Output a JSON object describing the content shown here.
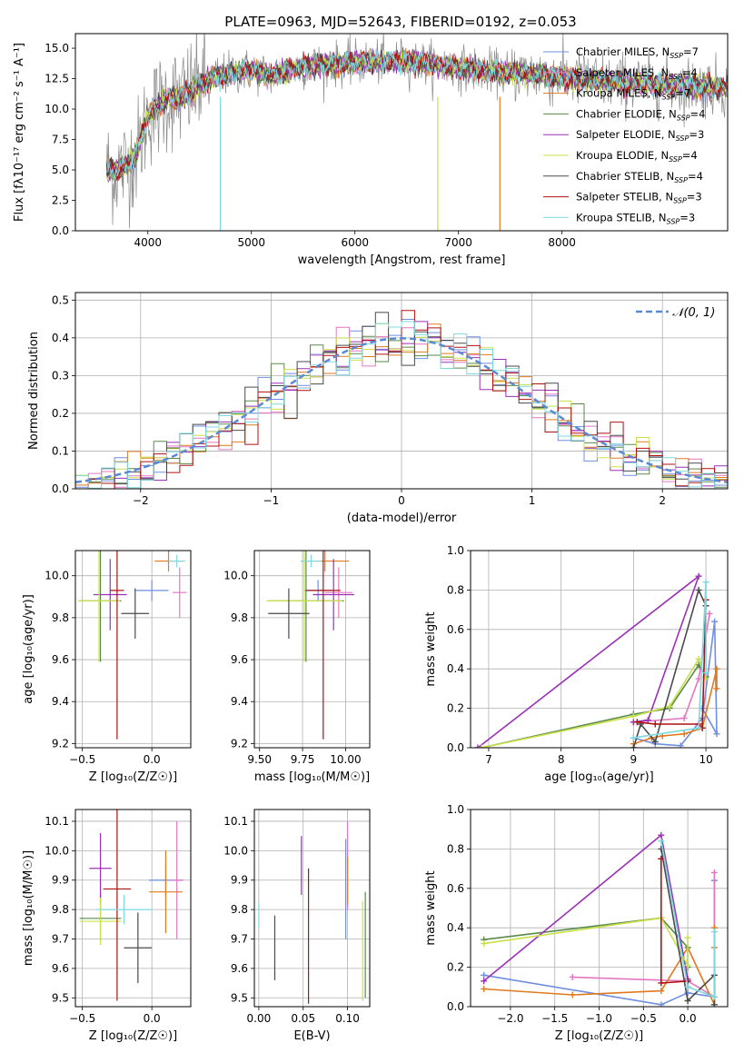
{
  "figure": {
    "title": "PLATE=0963, MJD=52643, FIBERID=0192, z=0.053"
  },
  "colors": {
    "chabrier_miles": "#6e8fe0",
    "salpeter_miles": "#e377c2",
    "kroupa_miles": "#e07a1f",
    "chabrier_elodie": "#5a8a4a",
    "salpeter_elodie": "#9b30b8",
    "kroupa_elodie": "#c8e04a",
    "chabrier_stelib": "#4a4a4a",
    "salpeter_stelib": "#b01010",
    "kroupa_stelib": "#7dd8e0",
    "data_gray": "#8a8a8a",
    "gaussian": "#5a8ad6"
  },
  "chart_data": [
    {
      "id": "spectrum",
      "type": "line",
      "xlabel": "wavelength [Angstrom, rest frame]",
      "ylabel": "Flux [f$_\\lambda$10$^{-17}$ erg cm$^{-2}$ s$^{-1}$ A$^{-1}$]",
      "ylabel_display": "Flux [fλ10⁻¹⁷ erg cm⁻² s⁻¹ A⁻¹]",
      "xlim": [
        3300,
        9600
      ],
      "ylim": [
        0,
        16.2
      ],
      "xticks": [
        4000,
        5000,
        6000,
        7000,
        8000
      ],
      "yticks": [
        0.0,
        2.5,
        5.0,
        7.5,
        10.0,
        12.5,
        15.0
      ],
      "ytick_labels": [
        "0.0",
        "2.5",
        "5.0",
        "7.5",
        "10.0",
        "12.5",
        "15.0"
      ],
      "legend_position": "top-right",
      "legend": [
        {
          "label": "Chabrier MILES, N",
          "sub": "SSP",
          "suffix": "=7",
          "color_key": "chabrier_miles"
        },
        {
          "label": "Salpeter MILES, N",
          "sub": "SSP",
          "suffix": "=4",
          "color_key": "salpeter_miles"
        },
        {
          "label": "Kroupa MILES, N",
          "sub": "SSP",
          "suffix": "=7",
          "color_key": "kroupa_miles"
        },
        {
          "label": "Chabrier ELODIE, N",
          "sub": "SSP",
          "suffix": "=4",
          "color_key": "chabrier_elodie"
        },
        {
          "label": "Salpeter ELODIE, N",
          "sub": "SSP",
          "suffix": "=3",
          "color_key": "salpeter_elodie"
        },
        {
          "label": "Kroupa ELODIE, N",
          "sub": "SSP",
          "suffix": "=4",
          "color_key": "kroupa_elodie"
        },
        {
          "label": "Chabrier STELIB, N",
          "sub": "SSP",
          "suffix": "=4",
          "color_key": "chabrier_stelib"
        },
        {
          "label": "Salpeter STELIB, N",
          "sub": "SSP",
          "suffix": "=3",
          "color_key": "salpeter_stelib"
        },
        {
          "label": "Kroupa STELIB, N",
          "sub": "SSP",
          "suffix": "=3",
          "color_key": "kroupa_stelib"
        }
      ],
      "continuum": {
        "x": [
          3600,
          3700,
          3800,
          3900,
          4000,
          4100,
          4200,
          4300,
          4500,
          4700,
          5000,
          5200,
          5500,
          6000,
          6500,
          7000,
          7400,
          7600,
          8000,
          8500,
          9000,
          9500
        ],
        "y": [
          5.0,
          5.0,
          5.3,
          6.5,
          9.5,
          10.2,
          11.0,
          10.8,
          12.0,
          12.8,
          13.2,
          12.8,
          13.5,
          13.8,
          14.0,
          13.4,
          13.0,
          13.0,
          12.6,
          12.2,
          12.0,
          11.8
        ]
      },
      "spikes": [
        {
          "x": 4700,
          "y": 0.0
        },
        {
          "x": 6800,
          "y": 0.0
        },
        {
          "x": 7400,
          "y": 0.0
        }
      ]
    },
    {
      "id": "residual_histogram",
      "type": "histogram",
      "xlabel": "(data-model)/error",
      "ylabel": "Normed distribution",
      "xlim": [
        -2.5,
        2.5
      ],
      "ylim": [
        0,
        0.52
      ],
      "xticks": [
        -2,
        -1,
        0,
        1,
        2
      ],
      "xtick_labels": [
        "−2",
        "−1",
        "0",
        "1",
        "2"
      ],
      "yticks": [
        0.0,
        0.1,
        0.2,
        0.3,
        0.4,
        0.5
      ],
      "ytick_labels": [
        "0.0",
        "0.1",
        "0.2",
        "0.3",
        "0.4",
        "0.5"
      ],
      "bin_width": 0.1,
      "legend_position": "top-right",
      "gaussian_label": "𝒩(0, 1)",
      "grid": true
    },
    {
      "id": "age_vs_Z",
      "type": "errorbar",
      "xlabel": "Z [log₁₀(Z/Z☉)]",
      "ylabel": "age  [log₁₀(age/yr)]",
      "xlim": [
        -0.55,
        0.28
      ],
      "ylim": [
        9.18,
        10.12
      ],
      "xticks": [
        -0.5,
        0.0
      ],
      "xtick_labels": [
        "−0.5",
        "0.0"
      ],
      "yticks": [
        9.2,
        9.4,
        9.6,
        9.8,
        10.0
      ],
      "ytick_labels": [
        "9.2",
        "9.4",
        "9.6",
        "9.8",
        "10.0"
      ],
      "points": [
        {
          "color_key": "chabrier_miles",
          "x": 0.0,
          "y": 9.93,
          "xerr": 0.12,
          "yerr": 0.05
        },
        {
          "color_key": "salpeter_miles",
          "x": 0.2,
          "y": 9.92,
          "xerr": 0.05,
          "yerr": 0.12
        },
        {
          "color_key": "kroupa_miles",
          "x": 0.12,
          "y": 10.07,
          "xerr": 0.1,
          "yerr": 0.05
        },
        {
          "color_key": "chabrier_elodie",
          "x": -0.37,
          "y": 9.88,
          "xerr": 0.15,
          "yerr": 0.29
        },
        {
          "color_key": "salpeter_elodie",
          "x": -0.3,
          "y": 9.91,
          "xerr": 0.12,
          "yerr": 0.17
        },
        {
          "color_key": "kroupa_elodie",
          "x": -0.38,
          "y": 9.88,
          "xerr": 0.15,
          "yerr": 0.29
        },
        {
          "color_key": "chabrier_stelib",
          "x": -0.12,
          "y": 9.82,
          "xerr": 0.1,
          "yerr": 0.12
        },
        {
          "color_key": "salpeter_stelib",
          "x": -0.25,
          "y": 9.93,
          "xerr": 0.05,
          "yerr": 0.71
        },
        {
          "color_key": "kroupa_stelib",
          "x": 0.18,
          "y": 10.07,
          "xerr": 0.06,
          "yerr": 0.03
        }
      ]
    },
    {
      "id": "age_vs_mass",
      "type": "errorbar",
      "xlabel": "mass [log₁₀(M/M☉)]",
      "ylabel": "",
      "xlim": [
        9.47,
        10.14
      ],
      "ylim": [
        9.18,
        10.12
      ],
      "xticks": [
        9.5,
        9.75,
        10.0
      ],
      "xtick_labels": [
        "9.50",
        "9.75",
        "10.00"
      ],
      "yticks": [
        9.2,
        9.4,
        9.6,
        9.8,
        10.0
      ],
      "ytick_labels": [
        "9.2",
        "9.4",
        "9.6",
        "9.8",
        "10.0"
      ],
      "points": [
        {
          "color_key": "chabrier_miles",
          "x": 9.84,
          "y": 9.93,
          "xerr": 0.08,
          "yerr": 0.05
        },
        {
          "color_key": "salpeter_miles",
          "x": 9.96,
          "y": 9.92,
          "xerr": 0.08,
          "yerr": 0.12
        },
        {
          "color_key": "kroupa_miles",
          "x": 9.88,
          "y": 10.07,
          "xerr": 0.14,
          "yerr": 0.05
        },
        {
          "color_key": "chabrier_elodie",
          "x": 9.77,
          "y": 9.88,
          "xerr": 0.22,
          "yerr": 0.29
        },
        {
          "color_key": "salpeter_elodie",
          "x": 9.93,
          "y": 9.91,
          "xerr": 0.12,
          "yerr": 0.17
        },
        {
          "color_key": "kroupa_elodie",
          "x": 9.76,
          "y": 9.88,
          "xerr": 0.22,
          "yerr": 0.29
        },
        {
          "color_key": "chabrier_stelib",
          "x": 9.67,
          "y": 9.82,
          "xerr": 0.12,
          "yerr": 0.12
        },
        {
          "color_key": "salpeter_stelib",
          "x": 9.87,
          "y": 9.93,
          "xerr": 0.1,
          "yerr": 0.71
        },
        {
          "color_key": "kroupa_stelib",
          "x": 9.8,
          "y": 10.07,
          "xerr": 0.06,
          "yerr": 0.03
        }
      ]
    },
    {
      "id": "weight_vs_age",
      "type": "line",
      "xlabel": "age  [log₁₀(age/yr)]",
      "ylabel": "mass weight",
      "xlim": [
        6.75,
        10.3
      ],
      "ylim": [
        0,
        1.0
      ],
      "xticks": [
        7,
        8,
        9,
        10
      ],
      "xtick_labels": [
        "7",
        "8",
        "9",
        "10"
      ],
      "yticks": [
        0.0,
        0.2,
        0.4,
        0.6,
        0.8,
        1.0
      ],
      "ytick_labels": [
        "0.0",
        "0.2",
        "0.4",
        "0.6",
        "0.8",
        "1.0"
      ],
      "grid": true,
      "series": [
        {
          "color_key": "chabrier_miles",
          "x": [
            9.0,
            9.3,
            9.65,
            9.95,
            10.12,
            10.15,
            9.95
          ],
          "y": [
            0.05,
            0.02,
            0.01,
            0.15,
            0.64,
            0.07,
            0.2
          ]
        },
        {
          "color_key": "salpeter_miles",
          "x": [
            9.0,
            9.7,
            9.9,
            10.05
          ],
          "y": [
            0.13,
            0.15,
            0.35,
            0.68
          ]
        },
        {
          "color_key": "kroupa_miles",
          "x": [
            9.0,
            9.25,
            9.4,
            9.7,
            9.95,
            10.15,
            10.15
          ],
          "y": [
            0.02,
            0.05,
            0.06,
            0.07,
            0.1,
            0.4,
            0.3
          ]
        },
        {
          "color_key": "chabrier_elodie",
          "x": [
            6.9,
            9.0,
            9.5,
            9.9,
            10.0
          ],
          "y": [
            0.0,
            0.17,
            0.2,
            0.42,
            0.36
          ]
        },
        {
          "color_key": "salpeter_elodie",
          "x": [
            6.85,
            9.9,
            9.2,
            9.0
          ],
          "y": [
            0.0,
            0.87,
            0.14,
            0.13
          ]
        },
        {
          "color_key": "kroupa_elodie",
          "x": [
            6.9,
            9.0,
            9.5,
            9.9,
            10.0
          ],
          "y": [
            0.0,
            0.16,
            0.21,
            0.45,
            0.35
          ]
        },
        {
          "color_key": "chabrier_stelib",
          "x": [
            9.0,
            9.1,
            9.3,
            9.9,
            10.0
          ],
          "y": [
            0.0,
            0.12,
            0.03,
            0.8,
            0.72
          ]
        },
        {
          "color_key": "salpeter_stelib",
          "x": [
            9.05,
            9.3,
            9.9,
            9.95,
            10.0
          ],
          "y": [
            0.13,
            0.12,
            0.12,
            0.1,
            0.75
          ]
        },
        {
          "color_key": "kroupa_stelib",
          "x": [
            9.0,
            9.9,
            10.0,
            10.0
          ],
          "y": [
            0.05,
            0.1,
            0.84,
            0.38
          ]
        }
      ]
    },
    {
      "id": "mass_vs_Z",
      "type": "errorbar",
      "xlabel": "Z [log₁₀(Z/Z☉)]",
      "ylabel": "mass [log₁₀(M/M☉)]",
      "xlim": [
        -0.55,
        0.28
      ],
      "ylim": [
        9.47,
        10.14
      ],
      "xticks": [
        -0.5,
        0.0
      ],
      "xtick_labels": [
        "−0.5",
        "0.0"
      ],
      "yticks": [
        9.5,
        9.6,
        9.7,
        9.8,
        9.9,
        10.0,
        10.1
      ],
      "ytick_labels": [
        "9.5",
        "9.6",
        "9.7",
        "9.8",
        "9.9",
        "10.0",
        "10.1"
      ],
      "points": [
        {
          "color_key": "chabrier_miles",
          "x": 0.1,
          "y": 9.9,
          "xerr": 0.12,
          "yerr": 0.06
        },
        {
          "color_key": "salpeter_miles",
          "x": 0.18,
          "y": 9.9,
          "xerr": 0.05,
          "yerr": 0.2
        },
        {
          "color_key": "kroupa_miles",
          "x": 0.1,
          "y": 9.86,
          "xerr": 0.12,
          "yerr": 0.14
        },
        {
          "color_key": "chabrier_elodie",
          "x": -0.37,
          "y": 9.77,
          "xerr": 0.15,
          "yerr": 0.08
        },
        {
          "color_key": "salpeter_elodie",
          "x": -0.37,
          "y": 9.94,
          "xerr": 0.08,
          "yerr": 0.12
        },
        {
          "color_key": "kroupa_elodie",
          "x": -0.37,
          "y": 9.76,
          "xerr": 0.15,
          "yerr": 0.08
        },
        {
          "color_key": "chabrier_stelib",
          "x": -0.1,
          "y": 9.67,
          "xerr": 0.1,
          "yerr": 0.12
        },
        {
          "color_key": "salpeter_stelib",
          "x": -0.25,
          "y": 9.87,
          "xerr": 0.1,
          "yerr": 0.38
        },
        {
          "color_key": "kroupa_stelib",
          "x": -0.2,
          "y": 9.8,
          "xerr": 0.2,
          "yerr": 0.05
        }
      ]
    },
    {
      "id": "mass_vs_ebv",
      "type": "errorbar",
      "xlabel": "E(B-V)",
      "ylabel": "",
      "xlim": [
        -0.005,
        0.125
      ],
      "ylim": [
        9.47,
        10.14
      ],
      "xticks": [
        0.0,
        0.05,
        0.1
      ],
      "xtick_labels": [
        "0.00",
        "0.05",
        "0.10"
      ],
      "yticks": [
        9.5,
        9.6,
        9.7,
        9.8,
        9.9,
        10.0,
        10.1
      ],
      "ytick_labels": [
        "9.5",
        "9.6",
        "9.7",
        "9.8",
        "9.9",
        "10.0",
        "10.1"
      ],
      "points": [
        {
          "color_key": "chabrier_miles",
          "x": 0.098,
          "y": 9.87,
          "xerr": 0.0,
          "yerr": 0.17
        },
        {
          "color_key": "salpeter_miles",
          "x": 0.1,
          "y": 9.95,
          "xerr": 0.0,
          "yerr": 0.15
        },
        {
          "color_key": "kroupa_miles",
          "x": 0.1,
          "y": 9.9,
          "xerr": 0.0,
          "yerr": 0.08
        },
        {
          "color_key": "chabrier_elodie",
          "x": 0.12,
          "y": 9.68,
          "xerr": 0.0,
          "yerr": 0.18
        },
        {
          "color_key": "salpeter_elodie",
          "x": 0.048,
          "y": 9.95,
          "xerr": 0.0,
          "yerr": 0.1
        },
        {
          "color_key": "kroupa_elodie",
          "x": 0.117,
          "y": 9.66,
          "xerr": 0.0,
          "yerr": 0.17
        },
        {
          "color_key": "chabrier_stelib",
          "x": 0.018,
          "y": 9.67,
          "xerr": 0.0,
          "yerr": 0.11
        },
        {
          "color_key": "salpeter_stelib",
          "x": 0.056,
          "y": 9.71,
          "xerr": 0.0,
          "yerr": 0.23
        },
        {
          "color_key": "kroupa_stelib",
          "x": 0.0,
          "y": 9.78,
          "xerr": 0.0,
          "yerr": 0.04
        }
      ]
    },
    {
      "id": "weight_vs_Z",
      "type": "line",
      "xlabel": "Z [log₁₀(Z/Z☉)]",
      "ylabel": "mass weight",
      "xlim": [
        -2.45,
        0.45
      ],
      "ylim": [
        0,
        1.0
      ],
      "xticks": [
        -2.0,
        -1.5,
        -1.0,
        -0.5,
        0.0
      ],
      "xtick_labels": [
        "−2.0",
        "−1.5",
        "−1.0",
        "−0.5",
        "0.0"
      ],
      "yticks": [
        0.0,
        0.2,
        0.4,
        0.6,
        0.8,
        1.0
      ],
      "ytick_labels": [
        "0.0",
        "0.2",
        "0.4",
        "0.6",
        "0.8",
        "1.0"
      ],
      "grid": true,
      "series": [
        {
          "color_key": "chabrier_miles",
          "x": [
            -2.3,
            -0.3,
            0.0,
            0.3,
            0.3
          ],
          "y": [
            0.16,
            0.01,
            0.07,
            0.05,
            0.64
          ]
        },
        {
          "color_key": "salpeter_miles",
          "x": [
            -1.3,
            0.0,
            0.3,
            0.3
          ],
          "y": [
            0.15,
            0.13,
            0.05,
            0.68
          ]
        },
        {
          "color_key": "kroupa_miles",
          "x": [
            -2.3,
            -1.3,
            -0.3,
            0.0,
            0.3,
            0.3,
            0.3
          ],
          "y": [
            0.09,
            0.06,
            0.08,
            0.3,
            0.01,
            0.4,
            0.3
          ]
        },
        {
          "color_key": "chabrier_elodie",
          "x": [
            -2.3,
            -0.3,
            0.0,
            0.0
          ],
          "y": [
            0.34,
            0.45,
            0.3,
            0.2
          ]
        },
        {
          "color_key": "salpeter_elodie",
          "x": [
            -2.3,
            -0.3,
            0.0,
            0.0
          ],
          "y": [
            0.13,
            0.87,
            0.14,
            0.13
          ]
        },
        {
          "color_key": "kroupa_elodie",
          "x": [
            -2.3,
            -0.3,
            0.0,
            0.0
          ],
          "y": [
            0.32,
            0.45,
            0.21,
            0.35
          ]
        },
        {
          "color_key": "chabrier_stelib",
          "x": [
            -0.3,
            0.0,
            0.3,
            0.3
          ],
          "y": [
            0.8,
            0.03,
            0.16,
            0.01
          ]
        },
        {
          "color_key": "salpeter_stelib",
          "x": [
            -0.3,
            -0.3,
            0.0,
            0.0
          ],
          "y": [
            0.75,
            0.12,
            0.13,
            0.1
          ]
        },
        {
          "color_key": "kroupa_stelib",
          "x": [
            -0.3,
            0.0,
            0.3,
            0.3
          ],
          "y": [
            0.84,
            0.1,
            0.05,
            0.38
          ]
        }
      ]
    }
  ]
}
